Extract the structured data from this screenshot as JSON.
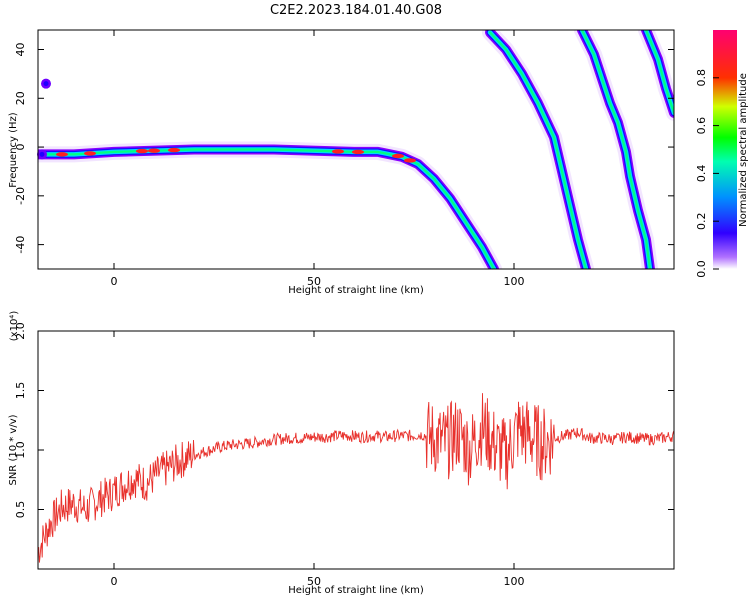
{
  "figure": {
    "title": "C2E2.2023.184.01.40.G08"
  },
  "chart_data": [
    {
      "type": "heatmap",
      "xlabel": "Height of straight line (km)",
      "ylabel": "Frequency (Hz)",
      "xlim": [
        -19,
        140
      ],
      "ylim": [
        -50,
        48
      ],
      "x_ticks": [
        "0",
        "50",
        "100"
      ],
      "x_tick_values": [
        0,
        50,
        100
      ],
      "y_ticks": [
        "40",
        "20",
        "0",
        "-20",
        "-40"
      ],
      "y_tick_values": [
        40,
        20,
        0,
        -20,
        -40
      ],
      "colorbar": {
        "label": "Normalized spectral amplitude",
        "ticks": [
          "0.0",
          "0.2",
          "0.4",
          "0.6",
          "0.8"
        ],
        "tick_values": [
          0.0,
          0.2,
          0.4,
          0.6,
          0.8
        ],
        "range": [
          0,
          1
        ],
        "colormap": [
          "#ffffff",
          "#7f00ff",
          "#0000ff",
          "#00ffff",
          "#00ff00",
          "#ffff00",
          "#ff0000",
          "#ff00ff"
        ]
      },
      "traces": [
        {
          "name": "",
          "points": [
            [
              -19,
              -3
            ],
            [
              -10,
              -3
            ],
            [
              0,
              -2
            ],
            [
              20,
              -1
            ],
            [
              40,
              -1
            ],
            [
              60,
              -2
            ],
            [
              66,
              -2
            ],
            [
              72,
              -4
            ],
            [
              76,
              -7
            ],
            [
              80,
              -13
            ],
            [
              84,
              -21
            ],
            [
              88,
              -31
            ],
            [
              92,
              -41
            ],
            [
              95,
              -50
            ]
          ]
        },
        {
          "name": "",
          "points": [
            [
              94,
              47
            ],
            [
              98,
              40
            ],
            [
              102,
              30
            ],
            [
              106,
              18
            ],
            [
              110,
              4
            ],
            [
              112,
              -10
            ],
            [
              114,
              -24
            ],
            [
              116,
              -38
            ],
            [
              118,
              -50
            ]
          ]
        },
        {
          "name": "",
          "points": [
            [
              117,
              48
            ],
            [
              120,
              38
            ],
            [
              122,
              28
            ],
            [
              124,
              18
            ],
            [
              126,
              10
            ],
            [
              128,
              -2
            ],
            [
              129,
              -12
            ],
            [
              131,
              -26
            ],
            [
              133,
              -38
            ],
            [
              134,
              -50
            ]
          ]
        },
        {
          "name": "",
          "points": [
            [
              133,
              48
            ],
            [
              136,
              36
            ],
            [
              138,
              24
            ],
            [
              140,
              14
            ]
          ]
        }
      ],
      "blobs": [
        {
          "x": -17,
          "y": 26
        },
        {
          "x": -18,
          "y": -3
        }
      ]
    },
    {
      "type": "line",
      "xlabel": "Height of straight line (km)",
      "ylabel": "SNR (10 * v/v)",
      "exponent_label": "(x10⁴)",
      "xlim": [
        -19,
        140
      ],
      "ylim": [
        0,
        2.0
      ],
      "x_ticks": [
        "0",
        "50",
        "100"
      ],
      "x_tick_values": [
        0,
        50,
        100
      ],
      "y_ticks": [
        "0.5",
        "1.0",
        "1.5",
        "2.0"
      ],
      "y_tick_values": [
        0.5,
        1.0,
        1.5,
        2.0
      ],
      "color": "#e8302b",
      "series": [
        {
          "name": "",
          "x": [
            -19,
            -16,
            -13,
            -10,
            -7,
            -4,
            -1,
            2,
            5,
            8,
            11,
            14,
            17,
            20,
            23,
            26,
            29,
            32,
            35,
            38,
            41,
            44,
            47,
            50,
            53,
            56,
            59,
            62,
            65,
            68,
            71,
            74,
            77,
            80,
            83,
            86,
            89,
            92,
            95,
            98,
            101,
            104,
            107,
            110,
            113,
            116,
            119,
            122,
            125,
            128,
            131,
            134,
            137,
            140
          ],
          "values": [
            0.15,
            0.38,
            0.52,
            0.55,
            0.5,
            0.58,
            0.63,
            0.7,
            0.76,
            0.72,
            0.8,
            0.86,
            0.92,
            0.96,
            0.99,
            1.02,
            1.04,
            1.05,
            1.06,
            1.08,
            1.09,
            1.1,
            1.1,
            1.11,
            1.11,
            1.12,
            1.12,
            1.11,
            1.12,
            1.11,
            1.12,
            1.12,
            1.13,
            1.1,
            1.05,
            1.15,
            1.0,
            1.2,
            1.05,
            0.95,
            1.18,
            1.12,
            1.05,
            1.1,
            1.12,
            1.15,
            1.1,
            1.1,
            1.09,
            1.11,
            1.1,
            1.09,
            1.1,
            1.12
          ]
        }
      ]
    }
  ]
}
